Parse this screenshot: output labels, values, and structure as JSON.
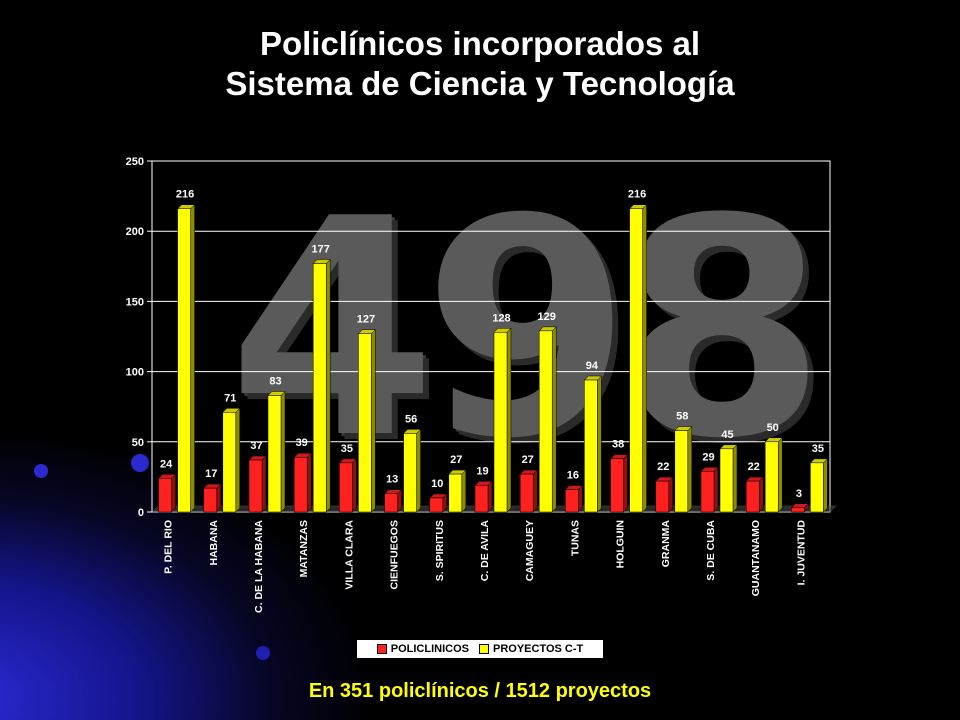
{
  "title_line1": "Policlínicos incorporados al",
  "title_line2": "Sistema de Ciencia y Tecnología",
  "background_number": "498",
  "footer": "En 351 policlínicos  / 1512 proyectos",
  "colors": {
    "policlinicos": "#ff2020",
    "proyectos": "#ffff00",
    "footer": "#ffff00"
  },
  "chart_data": {
    "type": "bar",
    "categories": [
      "P. DEL RIO",
      "HABANA",
      "C. DE LA HABANA",
      "MATANZAS",
      "VILLA CLARA",
      "CIENFUEGOS",
      "S. SPIRITUS",
      "C. DE AVILA",
      "CAMAGUEY",
      "TUNAS",
      "HOLGUIN",
      "GRANMA",
      "S. DE CUBA",
      "GUANTANAMO",
      "I. JUVENTUD"
    ],
    "series": [
      {
        "name": "POLICLINICOS",
        "values": [
          24,
          17,
          37,
          39,
          35,
          13,
          10,
          19,
          27,
          16,
          38,
          22,
          29,
          22,
          3
        ]
      },
      {
        "name": "PROYECTOS C-T",
        "values": [
          216,
          71,
          83,
          177,
          127,
          56,
          27,
          128,
          129,
          94,
          216,
          58,
          45,
          50,
          35
        ]
      }
    ],
    "ylim": [
      0,
      250
    ],
    "yticks": [
      0,
      50,
      100,
      150,
      200,
      250
    ],
    "grid": true,
    "legend_position": "bottom"
  }
}
